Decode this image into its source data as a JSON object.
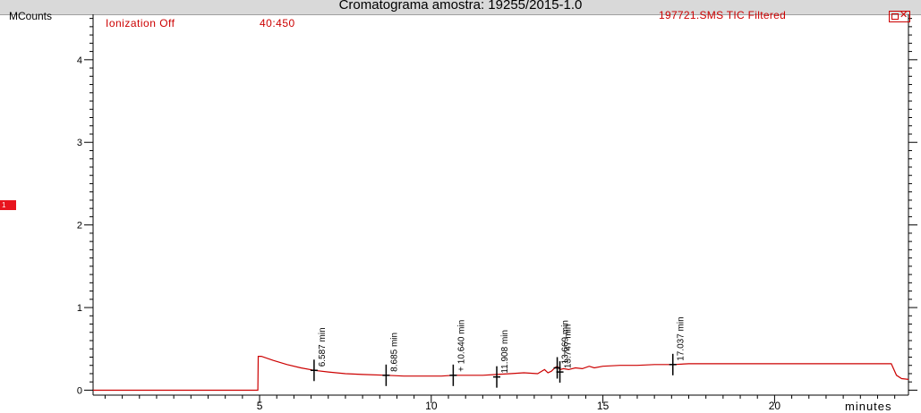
{
  "window": {
    "title": "Cromatograma amostra: 19255/2015-1.0"
  },
  "badge": {
    "label": "1",
    "color": "#e8141e"
  },
  "chart_data": {
    "type": "line",
    "title": "Cromatograma amostra: 19255/2015-1.0",
    "ylabel": "MCounts",
    "xlabel": "minutes",
    "ionization": "Ionization Off",
    "mz_range": "40:450",
    "trace_name": "197721.SMS TIC Filtered",
    "xlim": [
      0.15,
      23.9
    ],
    "ylim": [
      -0.06,
      4.55
    ],
    "x_ticks": [
      5,
      10,
      15,
      20
    ],
    "x_tick_labels": [
      "5",
      "10",
      "15",
      "20"
    ],
    "y_ticks": [
      0,
      1,
      2,
      3,
      4
    ],
    "y_tick_labels": [
      "0",
      "1",
      "2",
      "3",
      "4"
    ],
    "line_color": "#cc0000",
    "grid": false,
    "series": [
      {
        "x": [
          0.15,
          4.95,
          4.96,
          5.05,
          5.4,
          5.8,
          6.2,
          6.6,
          7.0,
          7.5,
          8.0,
          8.7,
          9.2,
          9.8,
          10.3,
          10.64,
          11.0,
          11.5,
          11.9,
          12.3,
          12.7,
          13.1,
          13.3,
          13.4,
          13.5,
          13.6,
          13.67,
          13.75,
          13.85,
          14.0,
          14.2,
          14.4,
          14.6,
          14.75,
          15.0,
          15.5,
          16.0,
          16.5,
          17.04,
          17.5,
          18.5,
          19.5,
          20.5,
          21.5,
          22.5,
          23.4,
          23.55,
          23.7,
          23.9
        ],
        "y": [
          0.0,
          0.0,
          0.41,
          0.41,
          0.36,
          0.31,
          0.27,
          0.24,
          0.22,
          0.2,
          0.19,
          0.18,
          0.17,
          0.17,
          0.17,
          0.18,
          0.18,
          0.18,
          0.19,
          0.2,
          0.21,
          0.2,
          0.25,
          0.21,
          0.23,
          0.27,
          0.29,
          0.25,
          0.26,
          0.25,
          0.27,
          0.26,
          0.29,
          0.27,
          0.29,
          0.3,
          0.3,
          0.31,
          0.31,
          0.32,
          0.32,
          0.32,
          0.32,
          0.32,
          0.32,
          0.32,
          0.18,
          0.14,
          0.13
        ]
      }
    ],
    "peaks": [
      {
        "x": 6.587,
        "y": 0.24,
        "label": "6.587 min"
      },
      {
        "x": 8.685,
        "y": 0.18,
        "label": "8.685 min"
      },
      {
        "x": 10.64,
        "y": 0.18,
        "label": "+ 10.640 min"
      },
      {
        "x": 11.908,
        "y": 0.16,
        "label": "11.908 min"
      },
      {
        "x": 13.669,
        "y": 0.27,
        "label": "13.669 min"
      },
      {
        "x": 13.747,
        "y": 0.22,
        "label": "13.747 min"
      },
      {
        "x": 17.037,
        "y": 0.31,
        "label": "17.037 min"
      }
    ]
  }
}
